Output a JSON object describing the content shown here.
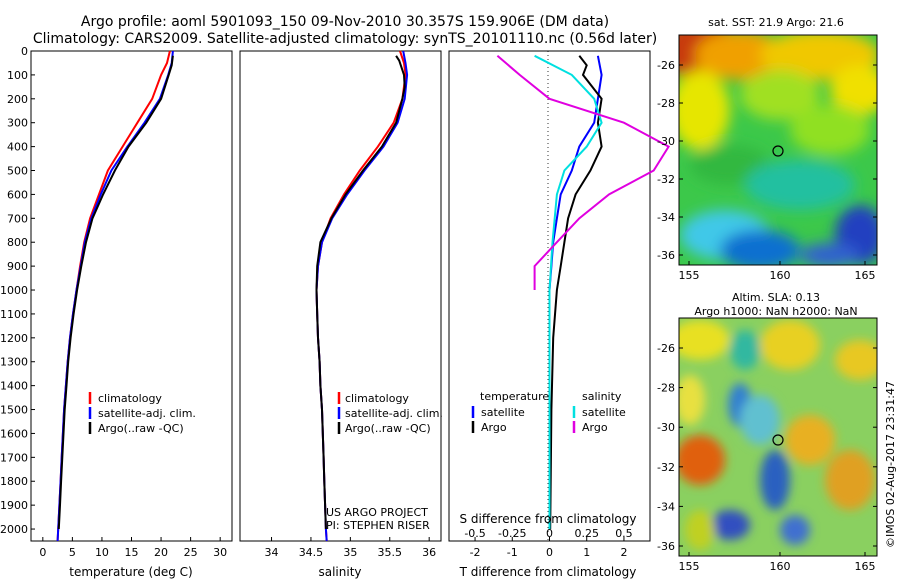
{
  "header": {
    "line1": "Argo profile: aoml 5901093_150 09-Nov-2010 30.357S 159.906E (DM data)",
    "line2": "Climatology: CARS2009. Satellite-adjusted climatology: synTS_20101110.nc (0.56d later)"
  },
  "colors": {
    "climatology": "#ff0000",
    "satellite": "#0000ff",
    "argo": "#000000",
    "argo_sal": "#e000e0",
    "sat_sal": "#00e0e0"
  },
  "chart_data": [
    {
      "type": "line",
      "id": "temperature",
      "xlabel": "temperature (deg C)",
      "ylabel": "",
      "xlim": [
        -2,
        32
      ],
      "ylim": [
        2050,
        0
      ],
      "xticks": [
        0,
        5,
        10,
        15,
        20,
        25,
        30
      ],
      "yticks": [
        0,
        100,
        200,
        300,
        400,
        500,
        600,
        700,
        800,
        900,
        1000,
        1100,
        1200,
        1300,
        1400,
        1500,
        1600,
        1700,
        1800,
        1900,
        2000
      ],
      "legend": [
        "climatology",
        "satellite-adj. clim.",
        "Argo(..raw -QC)"
      ],
      "series": [
        {
          "name": "climatology",
          "color": "#ff0000",
          "points": [
            [
              21.5,
              0
            ],
            [
              21,
              50
            ],
            [
              20,
              100
            ],
            [
              18.5,
              200
            ],
            [
              16,
              300
            ],
            [
              13.5,
              400
            ],
            [
              11,
              500
            ],
            [
              9.5,
              600
            ],
            [
              8,
              700
            ],
            [
              7,
              800
            ],
            [
              6.3,
              900
            ],
            [
              5.7,
              1000
            ],
            [
              5.1,
              1100
            ],
            [
              4.6,
              1200
            ],
            [
              4.2,
              1300
            ],
            [
              3.9,
              1400
            ],
            [
              3.6,
              1500
            ],
            [
              3.4,
              1600
            ],
            [
              3.2,
              1700
            ],
            [
              3,
              1800
            ],
            [
              2.8,
              1900
            ],
            [
              2.6,
              2000
            ],
            [
              2.5,
              2050
            ]
          ]
        },
        {
          "name": "satellite-adj. clim.",
          "color": "#0000ff",
          "points": [
            [
              22,
              0
            ],
            [
              21.8,
              50
            ],
            [
              21.2,
              100
            ],
            [
              19.8,
              200
            ],
            [
              17.2,
              300
            ],
            [
              14.3,
              400
            ],
            [
              11.6,
              500
            ],
            [
              9.8,
              600
            ],
            [
              8.2,
              700
            ],
            [
              7.1,
              800
            ],
            [
              6.4,
              900
            ],
            [
              5.7,
              1000
            ],
            [
              5.1,
              1100
            ],
            [
              4.6,
              1200
            ],
            [
              4.2,
              1300
            ],
            [
              3.9,
              1400
            ],
            [
              3.6,
              1500
            ],
            [
              3.4,
              1600
            ],
            [
              3.2,
              1700
            ],
            [
              3,
              1800
            ],
            [
              2.8,
              1900
            ],
            [
              2.6,
              2000
            ],
            [
              2.5,
              2050
            ]
          ]
        },
        {
          "name": "Argo(..raw -QC)",
          "color": "#000000",
          "points": [
            [
              22,
              20
            ],
            [
              21.8,
              60
            ],
            [
              21.3,
              100
            ],
            [
              20,
              200
            ],
            [
              17.5,
              300
            ],
            [
              14.5,
              400
            ],
            [
              12.2,
              500
            ],
            [
              10.2,
              600
            ],
            [
              8.4,
              700
            ],
            [
              7.3,
              800
            ],
            [
              6.5,
              900
            ],
            [
              5.8,
              1000
            ],
            [
              5.2,
              1100
            ],
            [
              4.7,
              1200
            ],
            [
              4.3,
              1300
            ],
            [
              4,
              1400
            ],
            [
              3.7,
              1500
            ],
            [
              3.5,
              1600
            ],
            [
              3.3,
              1700
            ],
            [
              3.1,
              1800
            ],
            [
              2.9,
              1900
            ],
            [
              2.7,
              2000
            ]
          ]
        }
      ]
    },
    {
      "type": "line",
      "id": "salinity",
      "xlabel": "salinity",
      "ylabel": "",
      "xlim": [
        33.6,
        36.15
      ],
      "ylim": [
        2050,
        0
      ],
      "xticks": [
        34,
        34.5,
        35,
        35.5,
        36
      ],
      "legend": [
        "climatology",
        "satellite-adj. clim.",
        "Argo(..raw -QC)"
      ],
      "annotations": [
        "US ARGO PROJECT",
        "PI: STEPHEN RISER"
      ],
      "series": [
        {
          "name": "climatology",
          "color": "#ff0000",
          "points": [
            [
              35.63,
              0
            ],
            [
              35.68,
              50
            ],
            [
              35.7,
              100
            ],
            [
              35.66,
              200
            ],
            [
              35.55,
              300
            ],
            [
              35.35,
              400
            ],
            [
              35.12,
              500
            ],
            [
              34.92,
              600
            ],
            [
              34.75,
              700
            ],
            [
              34.64,
              800
            ],
            [
              34.59,
              900
            ],
            [
              34.57,
              1000
            ],
            [
              34.58,
              1100
            ],
            [
              34.59,
              1200
            ],
            [
              34.61,
              1300
            ],
            [
              34.62,
              1400
            ],
            [
              34.64,
              1500
            ],
            [
              34.65,
              1600
            ],
            [
              34.66,
              1700
            ],
            [
              34.67,
              1800
            ],
            [
              34.68,
              1900
            ],
            [
              34.69,
              2000
            ],
            [
              34.7,
              2050
            ]
          ]
        },
        {
          "name": "satellite-adj. clim.",
          "color": "#0000ff",
          "points": [
            [
              35.67,
              0
            ],
            [
              35.7,
              50
            ],
            [
              35.72,
              100
            ],
            [
              35.69,
              200
            ],
            [
              35.6,
              300
            ],
            [
              35.42,
              400
            ],
            [
              35.18,
              500
            ],
            [
              34.96,
              600
            ],
            [
              34.77,
              700
            ],
            [
              34.64,
              800
            ],
            [
              34.59,
              900
            ],
            [
              34.57,
              1000
            ],
            [
              34.58,
              1100
            ],
            [
              34.59,
              1200
            ],
            [
              34.61,
              1300
            ],
            [
              34.62,
              1400
            ],
            [
              34.64,
              1500
            ],
            [
              34.65,
              1600
            ],
            [
              34.66,
              1700
            ],
            [
              34.67,
              1800
            ],
            [
              34.68,
              1900
            ],
            [
              34.69,
              2000
            ],
            [
              34.7,
              2050
            ]
          ]
        },
        {
          "name": "Argo(..raw -QC)",
          "color": "#000000",
          "points": [
            [
              35.58,
              20
            ],
            [
              35.62,
              40
            ],
            [
              35.64,
              60
            ],
            [
              35.68,
              100
            ],
            [
              35.69,
              150
            ],
            [
              35.66,
              200
            ],
            [
              35.58,
              300
            ],
            [
              35.4,
              400
            ],
            [
              35.16,
              500
            ],
            [
              34.94,
              600
            ],
            [
              34.76,
              700
            ],
            [
              34.62,
              800
            ],
            [
              34.58,
              900
            ],
            [
              34.57,
              1000
            ],
            [
              34.58,
              1100
            ],
            [
              34.59,
              1200
            ],
            [
              34.61,
              1300
            ],
            [
              34.62,
              1400
            ],
            [
              34.64,
              1500
            ],
            [
              34.65,
              1600
            ],
            [
              34.66,
              1700
            ],
            [
              34.67,
              1800
            ],
            [
              34.68,
              1900
            ],
            [
              34.69,
              2000
            ]
          ]
        }
      ]
    },
    {
      "type": "line",
      "id": "difference",
      "xlabel": "T difference from climatology",
      "xlabel_top": "S difference from climatology",
      "xlim": [
        -2.7,
        2.7
      ],
      "ylim": [
        2050,
        0
      ],
      "xticks": [
        -2,
        -1,
        0,
        1,
        2
      ],
      "top_ticks": [
        -0.5,
        -0.25,
        0,
        0.25,
        0.5
      ],
      "legend": {
        "temperature": "temperature",
        "salinity": "salinity",
        "t_sat": "satellite",
        "t_argo": "Argo",
        "s_sat": "satellite",
        "s_argo": "Argo"
      },
      "series": [
        {
          "name": "T satellite",
          "color": "#0000ff",
          "points": [
            [
              1.3,
              20
            ],
            [
              1.4,
              100
            ],
            [
              1.3,
              200
            ],
            [
              1.2,
              300
            ],
            [
              0.8,
              400
            ],
            [
              0.6,
              500
            ],
            [
              0.3,
              600
            ],
            [
              0.2,
              700
            ],
            [
              0.1,
              800
            ],
            [
              0.05,
              900
            ],
            [
              0,
              1000
            ],
            [
              0,
              1200
            ],
            [
              0,
              1500
            ],
            [
              0,
              2000
            ]
          ]
        },
        {
          "name": "T Argo",
          "color": "#000000",
          "points": [
            [
              0.8,
              20
            ],
            [
              1,
              60
            ],
            [
              0.9,
              100
            ],
            [
              1.4,
              200
            ],
            [
              1.3,
              300
            ],
            [
              1.4,
              400
            ],
            [
              1.1,
              500
            ],
            [
              0.7,
              600
            ],
            [
              0.5,
              700
            ],
            [
              0.4,
              800
            ],
            [
              0.3,
              900
            ],
            [
              0.2,
              1000
            ],
            [
              0.1,
              1200
            ],
            [
              0.05,
              1500
            ],
            [
              0.02,
              2000
            ]
          ]
        },
        {
          "name": "S satellite",
          "color": "#00e0e0",
          "points": [
            [
              -0.1,
              20
            ],
            [
              0.15,
              100
            ],
            [
              0.3,
              200
            ],
            [
              0.35,
              300
            ],
            [
              0.25,
              400
            ],
            [
              0.1,
              500
            ],
            [
              0.05,
              600
            ],
            [
              0.02,
              800
            ],
            [
              0,
              1000
            ],
            [
              0,
              1500
            ],
            [
              0,
              2000
            ]
          ]
        },
        {
          "name": "S Argo",
          "color": "#e000e0",
          "points": [
            [
              -0.35,
              20
            ],
            [
              -0.2,
              100
            ],
            [
              0,
              200
            ],
            [
              0.5,
              300
            ],
            [
              0.8,
              400
            ],
            [
              0.7,
              500
            ],
            [
              0.4,
              600
            ],
            [
              0.2,
              700
            ],
            [
              0.05,
              800
            ],
            [
              -0.1,
              900
            ],
            [
              -0.1,
              1000
            ]
          ]
        }
      ]
    }
  ],
  "maps": {
    "sst": {
      "title": "sat. SST: 21.9 Argo: 21.6",
      "yticks": [
        "-26",
        "-28",
        "-30",
        "-32",
        "-34",
        "-36"
      ],
      "xticks": [
        "155",
        "160",
        "165"
      ]
    },
    "sla": {
      "title1": "Altim. SLA: 0.13",
      "title2": "Argo h1000: NaN h2000: NaN",
      "yticks": [
        "-26",
        "-28",
        "-30",
        "-32",
        "-34",
        "-36"
      ],
      "xticks": [
        "155",
        "160",
        "165"
      ]
    },
    "credit": "©IMOS 02-Aug-2017 23:31:47"
  }
}
